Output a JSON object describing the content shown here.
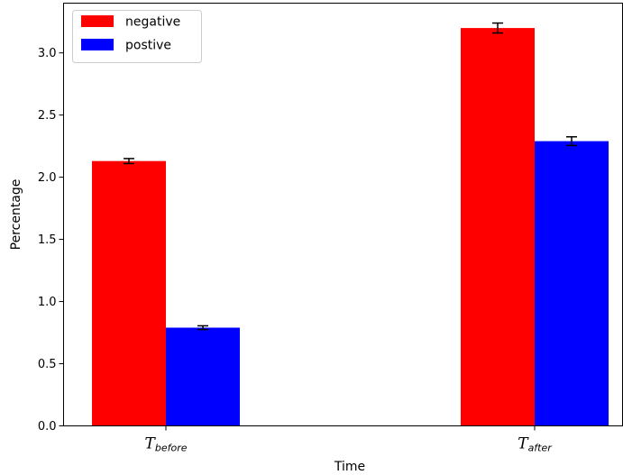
{
  "chart_data": {
    "type": "bar",
    "title": "",
    "xlabel": "Time",
    "ylabel": "Percentage",
    "ylim": [
      0,
      3.4
    ],
    "yticks": [
      0.0,
      0.5,
      1.0,
      1.5,
      2.0,
      2.5,
      3.0
    ],
    "ytick_labels": [
      "0.0",
      "0.5",
      "1.0",
      "1.5",
      "2.0",
      "2.5",
      "3.0"
    ],
    "categories": [
      {
        "main": "T",
        "sub": "before"
      },
      {
        "main": "T",
        "sub": "after"
      }
    ],
    "series": [
      {
        "name": "negative",
        "color": "#ff0000",
        "values": [
          2.13,
          3.2
        ],
        "errors": [
          0.02,
          0.04
        ]
      },
      {
        "name": "postive",
        "color": "#0000ff",
        "values": [
          0.79,
          2.29
        ],
        "errors": [
          0.015,
          0.035
        ]
      }
    ],
    "legend_position": "top-left",
    "grid": false,
    "error_bars": true
  }
}
